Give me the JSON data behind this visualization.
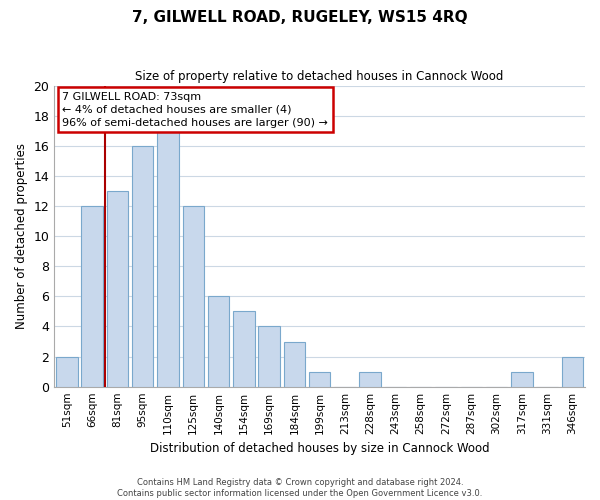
{
  "title": "7, GILWELL ROAD, RUGELEY, WS15 4RQ",
  "subtitle": "Size of property relative to detached houses in Cannock Wood",
  "xlabel": "Distribution of detached houses by size in Cannock Wood",
  "ylabel": "Number of detached properties",
  "bin_labels": [
    "51sqm",
    "66sqm",
    "81sqm",
    "95sqm",
    "110sqm",
    "125sqm",
    "140sqm",
    "154sqm",
    "169sqm",
    "184sqm",
    "199sqm",
    "213sqm",
    "228sqm",
    "243sqm",
    "258sqm",
    "272sqm",
    "287sqm",
    "302sqm",
    "317sqm",
    "331sqm",
    "346sqm"
  ],
  "bar_heights": [
    2,
    12,
    13,
    16,
    17,
    12,
    6,
    5,
    4,
    3,
    1,
    0,
    1,
    0,
    0,
    0,
    0,
    0,
    1,
    0,
    2
  ],
  "bar_color": "#c8d8ec",
  "bar_edge_color": "#7aa8cc",
  "ylim": [
    0,
    20
  ],
  "yticks": [
    0,
    2,
    4,
    6,
    8,
    10,
    12,
    14,
    16,
    18,
    20
  ],
  "vline_x_index": 1,
  "vline_color": "#aa0000",
  "annotation_text_line1": "7 GILWELL ROAD: 73sqm",
  "annotation_text_line2": "← 4% of detached houses are smaller (4)",
  "annotation_text_line3": "96% of semi-detached houses are larger (90) →",
  "annotation_box_color": "#ffffff",
  "annotation_border_color": "#cc0000",
  "footer_line1": "Contains HM Land Registry data © Crown copyright and database right 2024.",
  "footer_line2": "Contains public sector information licensed under the Open Government Licence v3.0.",
  "background_color": "#ffffff",
  "grid_color": "#ccd8e4"
}
